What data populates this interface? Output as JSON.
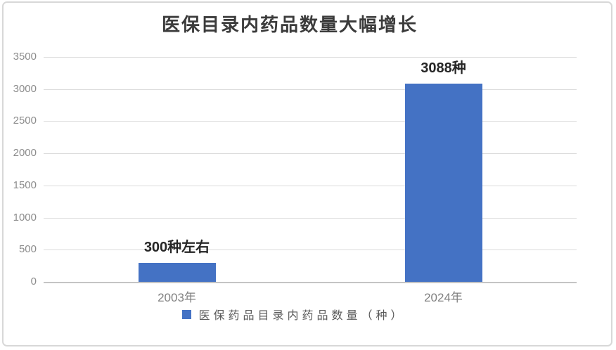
{
  "chart_data": {
    "type": "bar",
    "title": "医保目录内药品数量大幅增长",
    "categories": [
      "2003年",
      "2024年"
    ],
    "values": [
      300,
      3088
    ],
    "value_labels": [
      "300种左右",
      "3088种"
    ],
    "series": [
      {
        "name": "医保药品目录内药品数量（种）",
        "values": [
          300,
          3088
        ]
      }
    ],
    "legend_label": "医保药品目录内药品数量（种）",
    "xlabel": "",
    "ylabel": "",
    "ylim": [
      0,
      3500
    ],
    "yticks": [
      0,
      500,
      1000,
      1500,
      2000,
      2500,
      3000,
      3500
    ],
    "grid": true,
    "legend_position": "bottom",
    "bar_color": "#4472C4"
  },
  "colors": {
    "bar": "#4472C4",
    "gridline": "#DCDCDC",
    "axis_line": "#C4C4C4",
    "y_tick_label": "#8C8C8C",
    "x_category_label": "#808080",
    "legend_text": "#595959",
    "title": "#3B3B3B",
    "data_label": "#262626",
    "card_border": "#D8D8D8",
    "background": "#FFFFFF"
  }
}
